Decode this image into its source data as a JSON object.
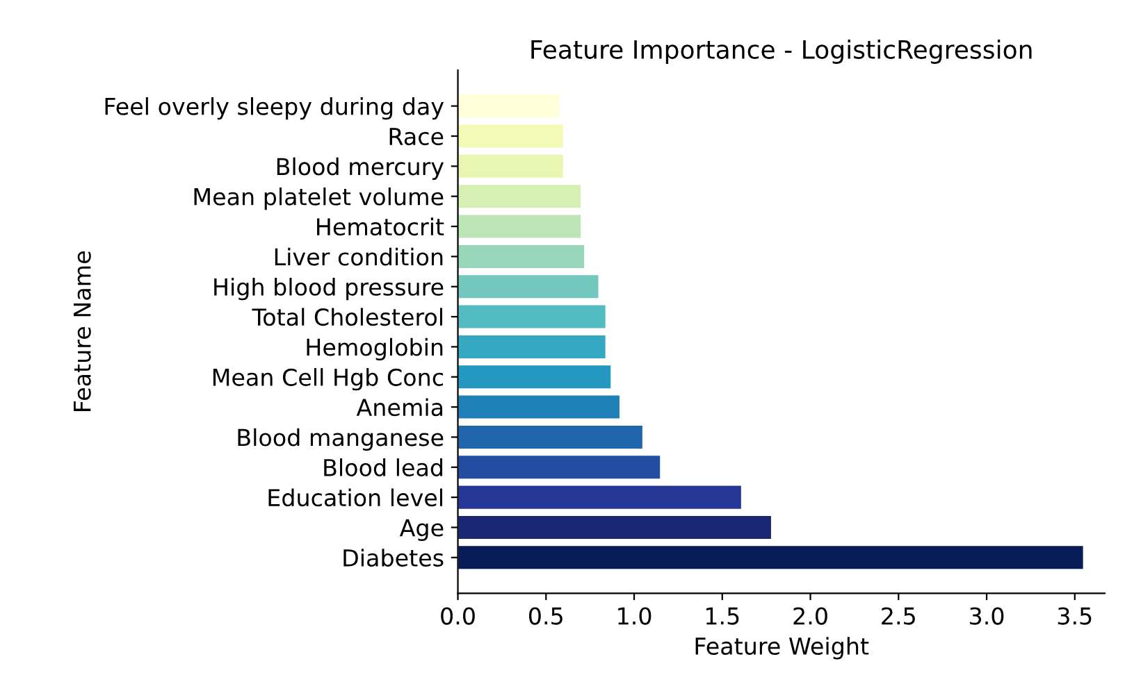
{
  "chart_data": {
    "type": "bar",
    "orientation": "horizontal",
    "title": "Feature Importance - LogisticRegression",
    "xlabel": "Feature Weight",
    "ylabel": "Feature Name",
    "categories": [
      "Feel overly sleepy during day",
      "Race",
      "Blood mercury",
      "Mean platelet volume",
      "Hematocrit",
      "Liver condition",
      "High blood pressure",
      "Total Cholesterol",
      "Hemoglobin",
      "Mean Cell Hgb Conc",
      "Anemia",
      "Blood manganese",
      "Blood lead",
      "Education level",
      "Age",
      "Diabetes"
    ],
    "values": [
      0.58,
      0.6,
      0.6,
      0.7,
      0.7,
      0.72,
      0.8,
      0.84,
      0.84,
      0.87,
      0.92,
      1.05,
      1.15,
      1.61,
      1.78,
      3.55
    ],
    "colors": [
      "#ffffd9",
      "#f3fab6",
      "#e8f6b1",
      "#d6efb3",
      "#bee5b5",
      "#97d6b9",
      "#73c8bd",
      "#52bcc2",
      "#35a9c2",
      "#2498c1",
      "#1f80b8",
      "#2166ac",
      "#234da0",
      "#253795",
      "#1a2772",
      "#081d58"
    ],
    "xlim": [
      0,
      3.67
    ],
    "xticks": [
      {
        "value": 0,
        "label": "0.0"
      },
      {
        "value": 0.5,
        "label": "0.5"
      },
      {
        "value": 1,
        "label": "1.0"
      },
      {
        "value": 1.5,
        "label": "1.5"
      },
      {
        "value": 2,
        "label": "2.0"
      },
      {
        "value": 2.5,
        "label": "2.5"
      },
      {
        "value": 3,
        "label": "3.0"
      },
      {
        "value": 3.5,
        "label": "3.5"
      }
    ],
    "grid": false,
    "legend": false
  }
}
